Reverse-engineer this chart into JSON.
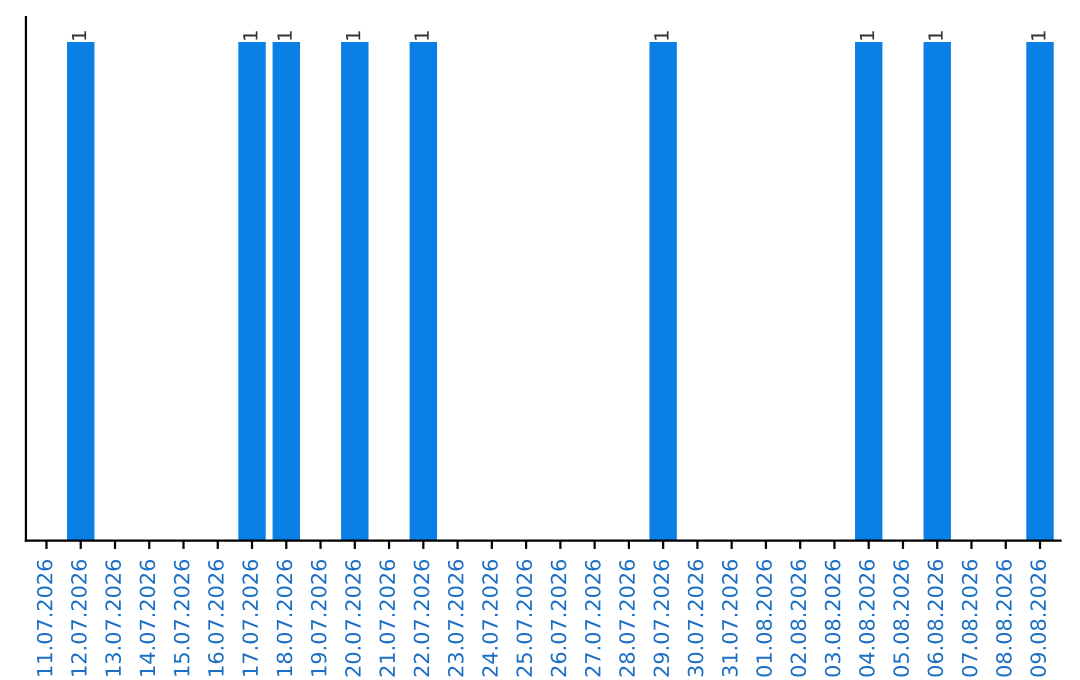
{
  "chart_data": {
    "type": "bar",
    "categories": [
      "11.07.2026",
      "12.07.2026",
      "13.07.2026",
      "14.07.2026",
      "15.07.2026",
      "16.07.2026",
      "17.07.2026",
      "18.07.2026",
      "19.07.2026",
      "20.07.2026",
      "21.07.2026",
      "22.07.2026",
      "23.07.2026",
      "24.07.2026",
      "25.07.2026",
      "26.07.2026",
      "27.07.2026",
      "28.07.2026",
      "29.07.2026",
      "30.07.2026",
      "31.07.2026",
      "01.08.2026",
      "02.08.2026",
      "03.08.2026",
      "04.08.2026",
      "05.08.2026",
      "06.08.2026",
      "07.08.2026",
      "08.08.2026",
      "09.08.2026"
    ],
    "values": [
      0,
      1,
      0,
      0,
      0,
      0,
      1,
      1,
      0,
      1,
      0,
      1,
      0,
      0,
      0,
      0,
      0,
      0,
      1,
      0,
      0,
      0,
      0,
      0,
      1,
      0,
      1,
      0,
      0,
      1
    ],
    "value_labels": [
      null,
      "1",
      null,
      null,
      null,
      null,
      "1",
      "1",
      null,
      "1",
      null,
      "1",
      null,
      null,
      null,
      null,
      null,
      null,
      "1",
      null,
      null,
      null,
      null,
      null,
      "1",
      null,
      "1",
      null,
      null,
      "1"
    ],
    "color": "#0a7fe6",
    "tick_labels": "x",
    "grid": false,
    "legend": false
  }
}
